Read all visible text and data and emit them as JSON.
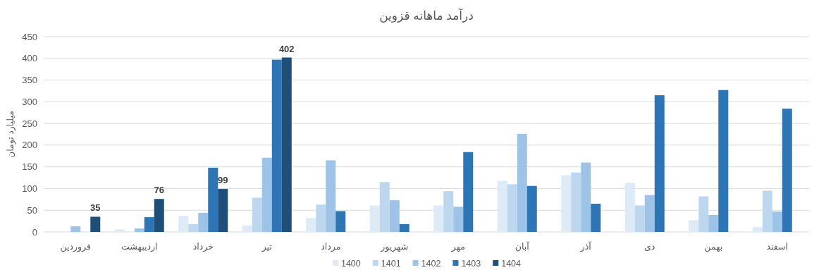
{
  "chart_data": {
    "type": "bar",
    "title": "درآمد ماهانه قزوین",
    "ylabel": "میلیارد تومان",
    "categories": [
      "فروردین",
      "اردیبهشت",
      "خرداد",
      "تیر",
      "مرداد",
      "شهریور",
      "مهر",
      "آبان",
      "آذر",
      "دی",
      "بهمن",
      "اسفند"
    ],
    "series": [
      {
        "name": "1400",
        "color": "#deebf7",
        "values": [
          null,
          6,
          37,
          15,
          32,
          61,
          61,
          118,
          131,
          113,
          27,
          11
        ]
      },
      {
        "name": "1401",
        "color": "#bdd7ee",
        "values": [
          null,
          null,
          18,
          79,
          63,
          115,
          94,
          110,
          137,
          61,
          82,
          95
        ]
      },
      {
        "name": "1402",
        "color": "#9dc3e6",
        "values": [
          13,
          8,
          44,
          171,
          165,
          73,
          58,
          226,
          160,
          85,
          39,
          47
        ]
      },
      {
        "name": "1403",
        "color": "#2e75b6",
        "values": [
          null,
          34,
          148,
          397,
          48,
          18,
          184,
          106,
          65,
          315,
          327,
          284
        ]
      },
      {
        "name": "1404",
        "color": "#1f4e79",
        "values": [
          35,
          76,
          99,
          402,
          null,
          null,
          null,
          null,
          null,
          null,
          null,
          null
        ],
        "value_labels": [
          "35",
          "76",
          "99",
          "402",
          null,
          null,
          null,
          null,
          null,
          null,
          null,
          null
        ]
      }
    ],
    "ylim": [
      0,
      450
    ],
    "yticks": [
      0,
      50,
      100,
      150,
      200,
      250,
      300,
      350,
      400,
      450
    ],
    "grid": "y",
    "legend": "bottom"
  }
}
